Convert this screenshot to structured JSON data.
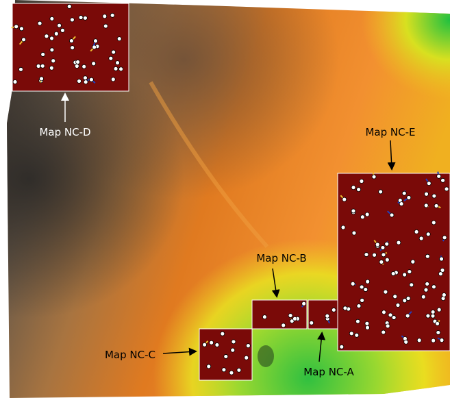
{
  "labels": {
    "nc_d": "Map NC-D",
    "nc_e": "Map NC-E",
    "nc_b": "Map NC-B",
    "nc_c": "Map NC-C",
    "nc_a": "Map NC-A"
  }
}
